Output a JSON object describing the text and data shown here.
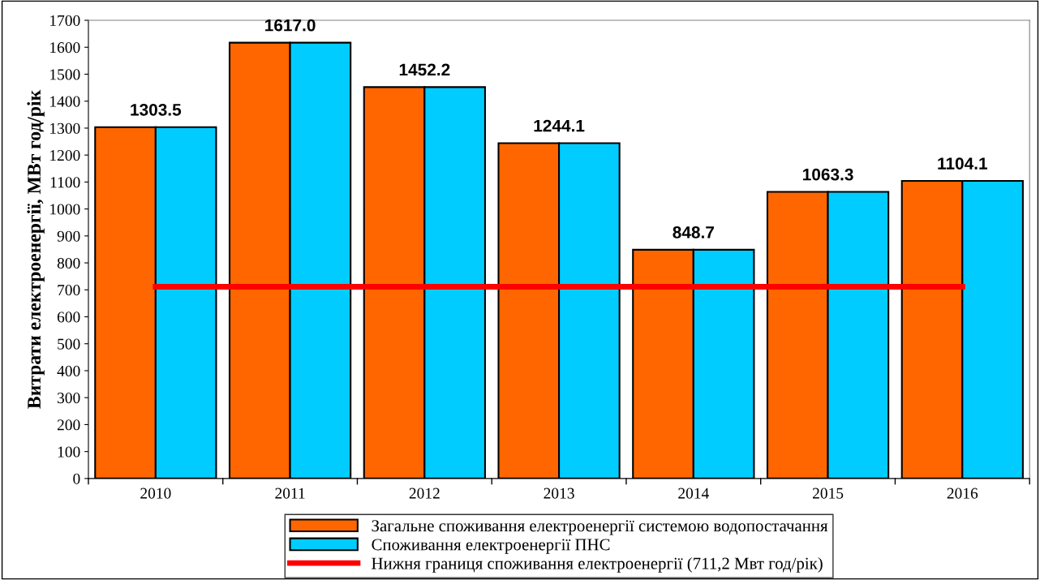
{
  "chart_data": {
    "type": "bar",
    "ylabel": "Витрати електроенергії, МВт год/рік",
    "categories": [
      "2010",
      "2011",
      "2012",
      "2013",
      "2014",
      "2015",
      "2016"
    ],
    "series": [
      {
        "name": "Загальне споживання електроенергії системою водопостачання",
        "color": "#ff6600",
        "values": [
          1303.5,
          1617.0,
          1452.2,
          1244.1,
          848.7,
          1063.3,
          1104.1
        ],
        "value_labels": [
          "1303.5",
          "1617.0",
          "1452.2",
          "1244.1",
          "848.7",
          "1063.3",
          "1104.1"
        ]
      },
      {
        "name": "Споживання електроенергії ПНС",
        "color": "#00ccff",
        "values": [
          1303.5,
          1617.0,
          1452.2,
          1244.1,
          848.7,
          1063.3,
          1104.1
        ]
      },
      {
        "name": "Нижня границя споживання електроенергії (711,2 Мвт год/рік)",
        "type": "line",
        "color": "#ff0000",
        "values": [
          711.2,
          711.2,
          711.2,
          711.2,
          711.2,
          711.2,
          711.2
        ],
        "marker": "none",
        "line_style": "solid"
      }
    ],
    "ylim": [
      0,
      1700
    ],
    "yticks": [
      0,
      100,
      200,
      300,
      400,
      500,
      600,
      700,
      800,
      900,
      1000,
      1100,
      1200,
      1300,
      1400,
      1500,
      1600,
      1700
    ],
    "grid": false,
    "legend": "bottom"
  }
}
